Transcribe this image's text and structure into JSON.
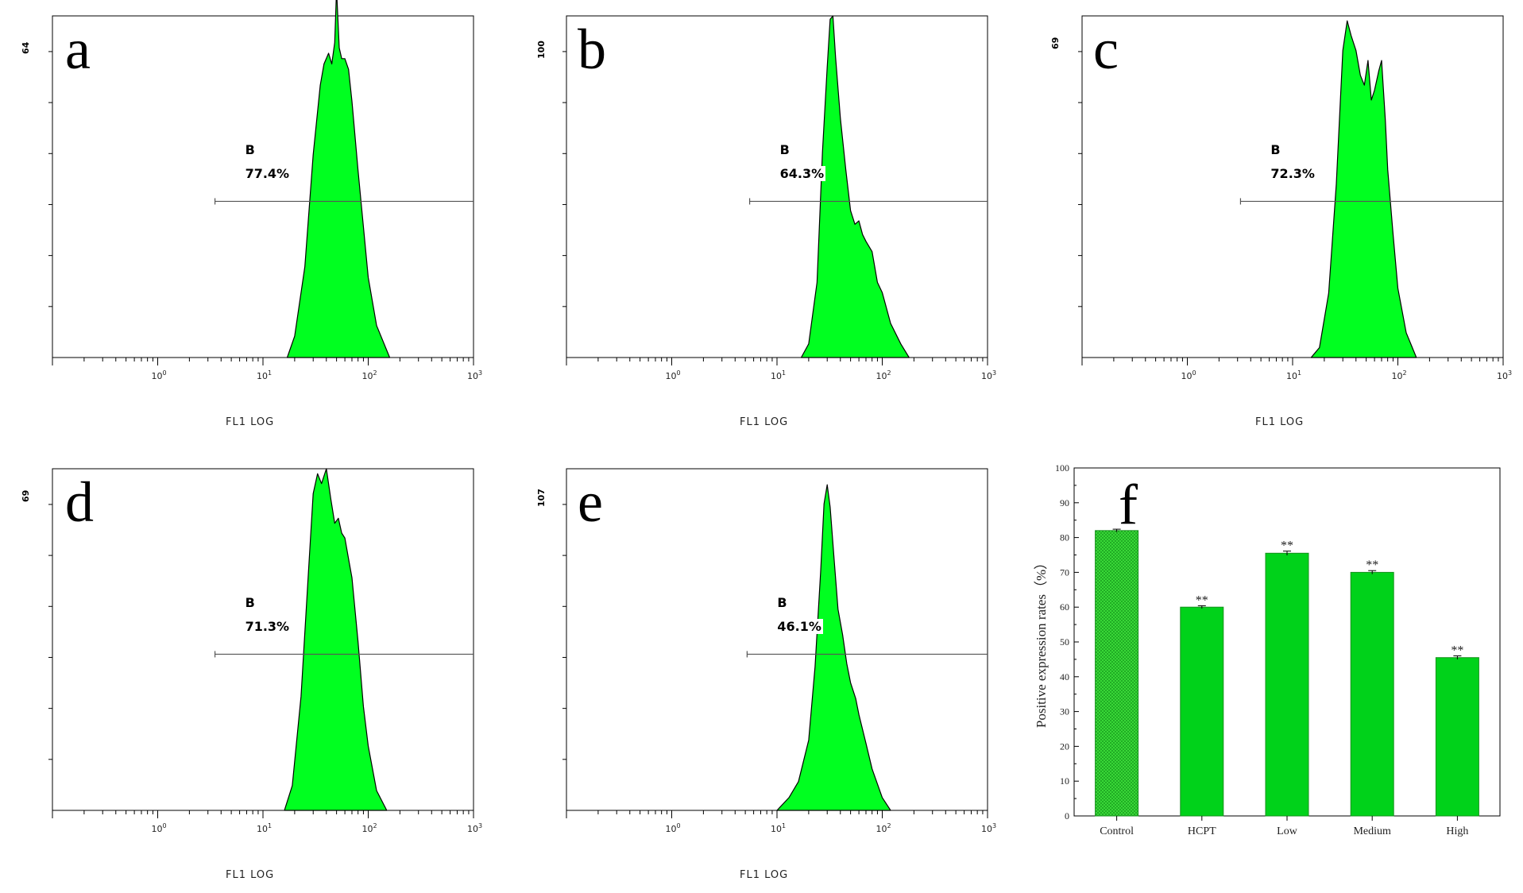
{
  "chart_data": [
    {
      "type": "area",
      "panel_letter": "a",
      "y_max_label": "64",
      "xlabel": "FL1 LOG",
      "x_scale": "log",
      "xlim": [
        0.1,
        1000
      ],
      "x_ticks": [
        "10^0",
        "10^1",
        "10^2",
        "10^3"
      ],
      "gate": {
        "name": "B",
        "percent": "77.4%",
        "range": [
          3.5,
          1000
        ]
      },
      "series": [
        {
          "x": [
            17,
            20,
            25,
            30,
            35,
            38,
            42,
            45,
            48,
            50,
            53,
            56,
            60,
            65,
            70,
            80,
            100,
            120,
            160
          ],
          "values": [
            0,
            4,
            17,
            38,
            51,
            55,
            57,
            55,
            59,
            69,
            58,
            56,
            56,
            54,
            48,
            35,
            15,
            6,
            0
          ]
        }
      ]
    },
    {
      "type": "area",
      "panel_letter": "b",
      "y_max_label": "100",
      "xlabel": "FL1 LOG",
      "x_scale": "log",
      "xlim": [
        0.1,
        1000
      ],
      "x_ticks": [
        "10^0",
        "10^1",
        "10^2",
        "10^3"
      ],
      "gate": {
        "name": "B",
        "percent": "64.3%",
        "range": [
          5.5,
          1000
        ]
      },
      "series": [
        {
          "x": [
            17,
            20,
            24,
            27,
            30,
            32,
            34,
            36,
            40,
            45,
            50,
            55,
            60,
            65,
            70,
            80,
            90,
            100,
            120,
            150,
            180
          ],
          "values": [
            0,
            4,
            22,
            60,
            85,
            99,
            100,
            88,
            70,
            55,
            43,
            39,
            40,
            36,
            34,
            31,
            22,
            19,
            10,
            4,
            0
          ]
        }
      ]
    },
    {
      "type": "area",
      "panel_letter": "c",
      "y_max_label": "69",
      "xlabel": "FL1 LOG",
      "x_scale": "log",
      "xlim": [
        0.1,
        1000
      ],
      "x_ticks": [
        "10^0",
        "10^1",
        "10^2",
        "10^3"
      ],
      "gate": {
        "name": "B",
        "percent": "72.3%",
        "range": [
          3.2,
          1000
        ]
      },
      "series": [
        {
          "x": [
            15,
            18,
            22,
            26,
            30,
            33,
            36,
            40,
            44,
            48,
            52,
            56,
            60,
            66,
            70,
            76,
            80,
            90,
            100,
            120,
            150
          ],
          "values": [
            0,
            2,
            13,
            35,
            62,
            68,
            65,
            62,
            57,
            55,
            60,
            52,
            54,
            58,
            60,
            48,
            38,
            25,
            14,
            5,
            0
          ]
        }
      ]
    },
    {
      "type": "area",
      "panel_letter": "d",
      "y_max_label": "69",
      "xlabel": "FL1 LOG",
      "x_scale": "log",
      "xlim": [
        0.1,
        1000
      ],
      "x_ticks": [
        "10^0",
        "10^1",
        "10^2",
        "10^3"
      ],
      "gate": {
        "name": "B",
        "percent": "71.3%",
        "range": [
          3.5,
          1000
        ]
      },
      "series": [
        {
          "x": [
            16,
            19,
            23,
            27,
            30,
            33,
            36,
            40,
            44,
            48,
            52,
            56,
            60,
            66,
            70,
            80,
            90,
            100,
            120,
            150
          ],
          "values": [
            0,
            5,
            23,
            48,
            64,
            68,
            66,
            69,
            63,
            58,
            59,
            56,
            55,
            50,
            47,
            34,
            21,
            13,
            4,
            0
          ]
        }
      ]
    },
    {
      "type": "area",
      "panel_letter": "e",
      "y_max_label": "107",
      "xlabel": "FL1 LOG",
      "x_scale": "log",
      "xlim": [
        0.1,
        1000
      ],
      "x_ticks": [
        "10^0",
        "10^1",
        "10^2",
        "10^3"
      ],
      "gate": {
        "name": "B",
        "percent": "46.1%",
        "range": [
          5.2,
          1000
        ]
      },
      "series": [
        {
          "x": [
            10,
            13,
            16,
            20,
            23,
            26,
            28,
            30,
            32,
            35,
            38,
            42,
            46,
            50,
            56,
            60,
            70,
            80,
            100,
            120
          ],
          "values": [
            0,
            4,
            9,
            22,
            45,
            75,
            96,
            102,
            95,
            78,
            63,
            55,
            46,
            40,
            35,
            30,
            21,
            13,
            4,
            0
          ]
        }
      ]
    },
    {
      "type": "bar",
      "panel_letter": "f",
      "title": "",
      "xlabel": "",
      "ylabel": "Positive expression rates（%）",
      "ylim": [
        0,
        100
      ],
      "y_ticks": [
        "0",
        "10",
        "20",
        "30",
        "40",
        "50",
        "60",
        "70",
        "80",
        "90",
        "100"
      ],
      "categories": [
        "Control",
        "HCPT",
        "Low",
        "Medium",
        "High"
      ],
      "values": [
        82,
        60,
        75.5,
        70,
        45.5
      ],
      "errors": [
        0.4,
        0.4,
        0.6,
        0.5,
        0.5
      ],
      "annotations": [
        "",
        "**",
        "**",
        "**",
        "**"
      ],
      "colors": {
        "bar_fill": "#00d21a",
        "control_hatch": "#3fe33c",
        "edge": "#15911c"
      }
    }
  ],
  "colors": {
    "histogram_fill": "#00ff20",
    "histogram_edge": "#000000",
    "axis": "#000000",
    "gate_line": "#555555"
  }
}
